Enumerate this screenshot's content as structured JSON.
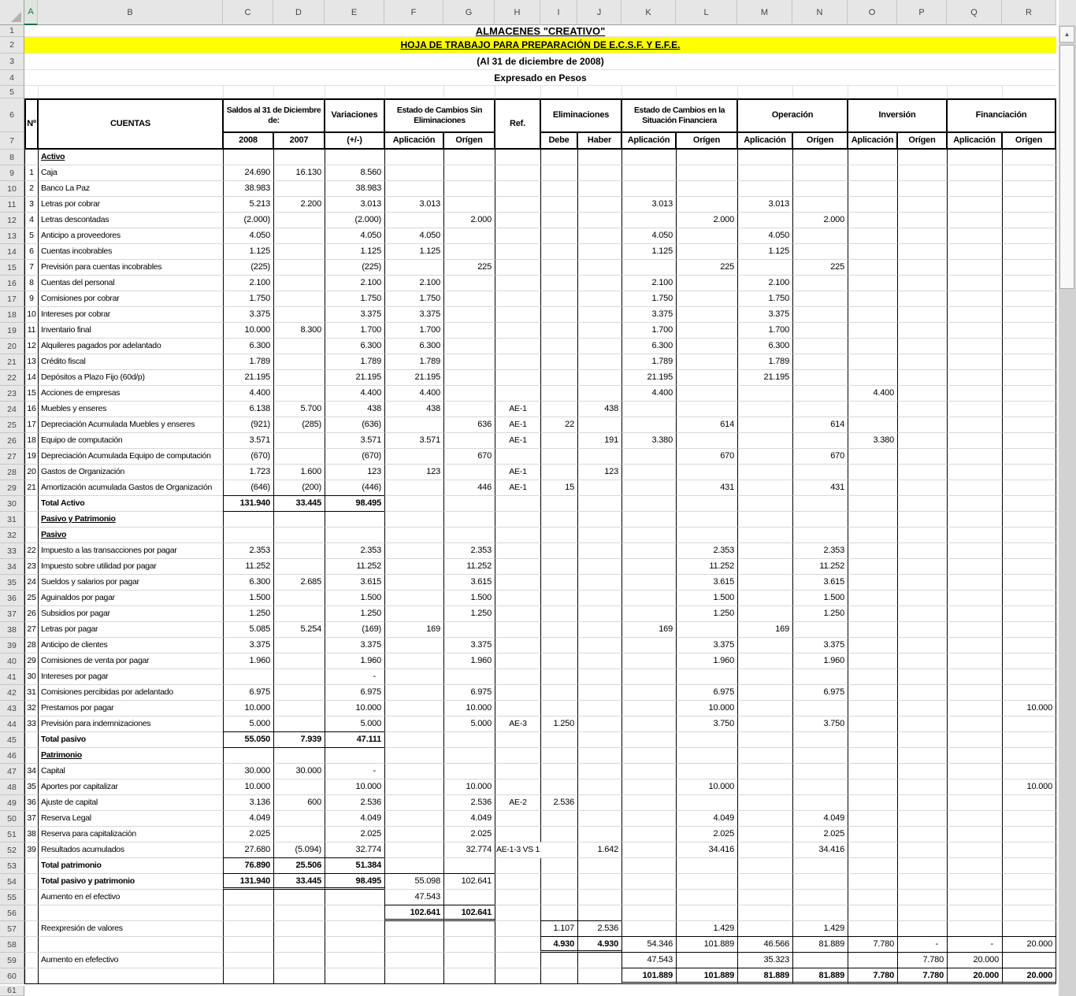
{
  "sheet": {
    "selected_column": "A",
    "highlight_color": "#ffff00",
    "accent_green": "#1e7145",
    "column_letters": [
      "A",
      "B",
      "C",
      "D",
      "E",
      "F",
      "G",
      "H",
      "I",
      "J",
      "K",
      "L",
      "M",
      "N",
      "O",
      "P",
      "Q",
      "R"
    ],
    "titles": {
      "line1": "ALMACENES \"CREATIVO\"",
      "line2": "HOJA DE TRABAJO PARA PREPARACIÓN DE E.C.S.F. Y E.F.E.",
      "line3": "(Al 31 de diciembre de 2008)",
      "line4": "Expresado en Pesos"
    },
    "header": {
      "no_label": "Nº",
      "accounts_label": "CUENTAS",
      "ref_label": "Ref.",
      "groups": [
        {
          "id": "saldos",
          "label": "Saldos al 31 de Diciembre de:",
          "cols": [
            "C",
            "D"
          ],
          "subs": [
            "2008",
            "2007"
          ]
        },
        {
          "id": "variaciones",
          "label": "Variaciones",
          "cols": [
            "E"
          ],
          "subs": [
            "(+/-)"
          ]
        },
        {
          "id": "cambios-sin-elim",
          "label": "Estado de Cambios Sin Eliminaciones",
          "cols": [
            "F",
            "G"
          ],
          "subs": [
            "Aplicación",
            "Orígen"
          ]
        },
        {
          "id": "eliminaciones",
          "label": "Eliminaciones",
          "cols": [
            "I",
            "J"
          ],
          "subs": [
            "Debe",
            "Haber"
          ]
        },
        {
          "id": "cambios-situacion",
          "label": "Estado de Cambios en la Situación Financiera",
          "cols": [
            "K",
            "L"
          ],
          "subs": [
            "Aplicación",
            "Orígen"
          ]
        },
        {
          "id": "operacion",
          "label": "Operación",
          "cols": [
            "M",
            "N"
          ],
          "subs": [
            "Aplicación",
            "Orígen"
          ]
        },
        {
          "id": "inversion",
          "label": "Inversión",
          "cols": [
            "O",
            "P"
          ],
          "subs": [
            "Aplicación",
            "Orígen"
          ]
        },
        {
          "id": "financiacion",
          "label": "Financiación",
          "cols": [
            "Q",
            "R"
          ],
          "subs": [
            "Aplicación",
            "Orígen"
          ]
        }
      ]
    },
    "rows": [
      {
        "r": 8,
        "name": "Activo",
        "style": "section"
      },
      {
        "r": 9,
        "no": "1",
        "name": "Caja",
        "C": "24.690",
        "D": "16.130",
        "E": "8.560"
      },
      {
        "r": 10,
        "no": "2",
        "name": "Banco La Paz",
        "C": "38.983",
        "E": "38.983"
      },
      {
        "r": 11,
        "no": "3",
        "name": "Letras por cobrar",
        "C": "5.213",
        "D": "2.200",
        "E": "3.013",
        "F": "3.013",
        "K": "3.013",
        "M": "3.013"
      },
      {
        "r": 12,
        "no": "4",
        "name": "Letras descontadas",
        "C": "(2.000)",
        "E": "(2.000)",
        "G": "2.000",
        "L": "2.000",
        "N": "2.000"
      },
      {
        "r": 13,
        "no": "5",
        "name": "Anticipo a proveedores",
        "C": "4.050",
        "E": "4.050",
        "F": "4.050",
        "K": "4.050",
        "M": "4.050"
      },
      {
        "r": 14,
        "no": "6",
        "name": "Cuentas incobrables",
        "C": "1.125",
        "E": "1.125",
        "F": "1.125",
        "K": "1.125",
        "M": "1.125"
      },
      {
        "r": 15,
        "no": "7",
        "name": "Previsión para cuentas incobrables",
        "C": "(225)",
        "E": "(225)",
        "G": "225",
        "L": "225",
        "N": "225"
      },
      {
        "r": 16,
        "no": "8",
        "name": "Cuentas del personal",
        "C": "2.100",
        "E": "2.100",
        "F": "2.100",
        "K": "2.100",
        "M": "2.100"
      },
      {
        "r": 17,
        "no": "9",
        "name": "Comisiones por cobrar",
        "C": "1.750",
        "E": "1.750",
        "F": "1.750",
        "K": "1.750",
        "M": "1.750"
      },
      {
        "r": 18,
        "no": "10",
        "name": "Intereses por cobrar",
        "C": "3.375",
        "E": "3.375",
        "F": "3.375",
        "K": "3.375",
        "M": "3.375"
      },
      {
        "r": 19,
        "no": "11",
        "name": "Inventario final",
        "C": "10.000",
        "D": "8.300",
        "E": "1.700",
        "F": "1.700",
        "K": "1.700",
        "M": "1.700"
      },
      {
        "r": 20,
        "no": "12",
        "name": "Alquileres pagados por adelantado",
        "C": "6.300",
        "E": "6.300",
        "F": "6.300",
        "K": "6.300",
        "M": "6.300"
      },
      {
        "r": 21,
        "no": "13",
        "name": "Crédito fiscal",
        "C": "1.789",
        "E": "1.789",
        "F": "1.789",
        "K": "1.789",
        "M": "1.789"
      },
      {
        "r": 22,
        "no": "14",
        "name": "Depósitos a Plazo Fijo (60d/p)",
        "C": "21.195",
        "E": "21.195",
        "F": "21.195",
        "K": "21.195",
        "M": "21.195"
      },
      {
        "r": 23,
        "no": "15",
        "name": "Acciones de empresas",
        "C": "4.400",
        "E": "4.400",
        "F": "4.400",
        "K": "4.400",
        "O": "4.400"
      },
      {
        "r": 24,
        "no": "16",
        "name": "Muebles y enseres",
        "C": "6.138",
        "D": "5.700",
        "E": "438",
        "F": "438",
        "H": "AE-1",
        "J": "438"
      },
      {
        "r": 25,
        "no": "17",
        "name": "Depreciación Acumulada Muebles y enseres",
        "C": "(921)",
        "D": "(285)",
        "E": "(636)",
        "G": "636",
        "H": "AE-1",
        "I": "22",
        "L": "614",
        "N": "614"
      },
      {
        "r": 26,
        "no": "18",
        "name": "Equipo de computación",
        "C": "3.571",
        "E": "3.571",
        "F": "3.571",
        "H": "AE-1",
        "J": "191",
        "K": "3.380",
        "O": "3.380"
      },
      {
        "r": 27,
        "no": "19",
        "name": "Depreciación Acumulada Equipo de computación",
        "C": "(670)",
        "E": "(670)",
        "G": "670",
        "L": "670",
        "N": "670"
      },
      {
        "r": 28,
        "no": "20",
        "name": "Gastos de Organización",
        "C": "1.723",
        "D": "1.600",
        "E": "123",
        "F": "123",
        "H": "AE-1",
        "J": "123"
      },
      {
        "r": 29,
        "no": "21",
        "name": "Amortización acumulada Gastos de Organización",
        "C": "(646)",
        "D": "(200)",
        "E": "(446)",
        "G": "446",
        "H": "AE-1",
        "I": "15",
        "L": "431",
        "N": "431"
      },
      {
        "r": 30,
        "name": "Total Activo",
        "style": "total",
        "C": "131.940",
        "D": "33.445",
        "E": "98.495"
      },
      {
        "r": 31,
        "name": "Pasivo y Patrimonio",
        "style": "section"
      },
      {
        "r": 32,
        "name": "Pasivo",
        "style": "section"
      },
      {
        "r": 33,
        "no": "22",
        "name": "Impuesto a las transacciones por pagar",
        "C": "2.353",
        "E": "2.353",
        "G": "2.353",
        "L": "2.353",
        "N": "2.353"
      },
      {
        "r": 34,
        "no": "23",
        "name": "Impuesto sobre utilidad por pagar",
        "C": "11.252",
        "E": "11.252",
        "G": "11.252",
        "L": "11.252",
        "N": "11.252"
      },
      {
        "r": 35,
        "no": "24",
        "name": "Sueldos y salarios por pagar",
        "C": "6.300",
        "D": "2.685",
        "E": "3.615",
        "G": "3.615",
        "L": "3.615",
        "N": "3.615"
      },
      {
        "r": 36,
        "no": "25",
        "name": "Aguinaldos por pagar",
        "C": "1.500",
        "E": "1.500",
        "G": "1.500",
        "L": "1.500",
        "N": "1.500"
      },
      {
        "r": 37,
        "no": "26",
        "name": "Subsidios por pagar",
        "C": "1.250",
        "E": "1.250",
        "G": "1.250",
        "L": "1.250",
        "N": "1.250"
      },
      {
        "r": 38,
        "no": "27",
        "name": "Letras por pagar",
        "C": "5.085",
        "D": "5.254",
        "E": "(169)",
        "F": "169",
        "K": "169",
        "M": "169"
      },
      {
        "r": 39,
        "no": "28",
        "name": "Anticipo de clientes",
        "C": "3.375",
        "E": "3.375",
        "G": "3.375",
        "L": "3.375",
        "N": "3.375"
      },
      {
        "r": 40,
        "no": "29",
        "name": "Comisiones de venta por pagar",
        "C": "1.960",
        "E": "1.960",
        "G": "1.960",
        "L": "1.960",
        "N": "1.960"
      },
      {
        "r": 41,
        "no": "30",
        "name": "Intereses por pagar",
        "E": "-"
      },
      {
        "r": 42,
        "no": "31",
        "name": "Comisiones percibidas por adelantado",
        "C": "6.975",
        "E": "6.975",
        "G": "6.975",
        "L": "6.975",
        "N": "6.975"
      },
      {
        "r": 43,
        "no": "32",
        "name": "Prestamos por pagar",
        "C": "10.000",
        "E": "10.000",
        "G": "10.000",
        "L": "10.000",
        "R": "10.000"
      },
      {
        "r": 44,
        "no": "33",
        "name": "Previsión para indemnizaciones",
        "C": "5.000",
        "E": "5.000",
        "G": "5.000",
        "H": "AE-3",
        "I": "1.250",
        "L": "3.750",
        "N": "3.750"
      },
      {
        "r": 45,
        "name": "Total pasivo",
        "style": "total",
        "C": "55.050",
        "D": "7.939",
        "E": "47.111"
      },
      {
        "r": 46,
        "name": "Patrimonio",
        "style": "section"
      },
      {
        "r": 47,
        "no": "34",
        "name": "Capital",
        "C": "30.000",
        "D": "30.000",
        "E": "-"
      },
      {
        "r": 48,
        "no": "35",
        "name": "Aportes por capitalizar",
        "C": "10.000",
        "E": "10.000",
        "G": "10.000",
        "L": "10.000",
        "R": "10.000"
      },
      {
        "r": 49,
        "no": "36",
        "name": "Ajuste de capital",
        "C": "3.136",
        "D": "600",
        "E": "2.536",
        "G": "2.536",
        "H": "AE-2",
        "I": "2.536"
      },
      {
        "r": 50,
        "no": "37",
        "name": "Reserva Legal",
        "C": "4.049",
        "E": "4.049",
        "G": "4.049",
        "L": "4.049",
        "N": "4.049"
      },
      {
        "r": 51,
        "no": "38",
        "name": "Reserva para capitalización",
        "C": "2.025",
        "E": "2.025",
        "G": "2.025",
        "L": "2.025",
        "N": "2.025"
      },
      {
        "r": 52,
        "no": "39",
        "name": "Resultados acumulados",
        "C": "27.680",
        "D": "(5.094)",
        "E": "32.774",
        "G": "32.774",
        "H": "AE-1-3 VS 1",
        "J": "1.642",
        "L": "34.416",
        "N": "34.416",
        "h_overflow": true
      },
      {
        "r": 53,
        "name": "Total patrimonio",
        "style": "total",
        "C": "76.890",
        "D": "25.506",
        "E": "51.384"
      },
      {
        "r": 54,
        "name": "Total pasivo y patrimonio",
        "style": "total",
        "C": "131.940",
        "D": "33.445",
        "E": "98.495",
        "F": "55.098",
        "G": "102.641"
      },
      {
        "r": 55,
        "name": "Aumento en el efectivo",
        "F": "47.543"
      },
      {
        "r": 56,
        "F": "102.641",
        "G": "102.641",
        "bold": [
          "F",
          "G"
        ]
      },
      {
        "r": 57,
        "name": "Reexpresión de valores",
        "I": "1.107",
        "J": "2.536",
        "L": "1.429",
        "N": "1.429"
      },
      {
        "r": 58,
        "I": "4.930",
        "J": "4.930",
        "K": "54.346",
        "L": "101.889",
        "M": "46.566",
        "N": "81.889",
        "O": "7.780",
        "P": "-",
        "Q": "-",
        "R": "20.000",
        "bold": [
          "I",
          "J"
        ]
      },
      {
        "r": 59,
        "name": "Aumento en efefectivo",
        "K": "47.543",
        "M": "35.323",
        "P": "7.780",
        "Q": "20.000"
      },
      {
        "r": 60,
        "K": "101.889",
        "L": "101.889",
        "M": "81.889",
        "N": "81.889",
        "O": "7.780",
        "P": "7.780",
        "Q": "20.000",
        "R": "20.000",
        "bold": [
          "K",
          "L",
          "M",
          "N",
          "O",
          "P",
          "Q",
          "R"
        ]
      }
    ]
  }
}
